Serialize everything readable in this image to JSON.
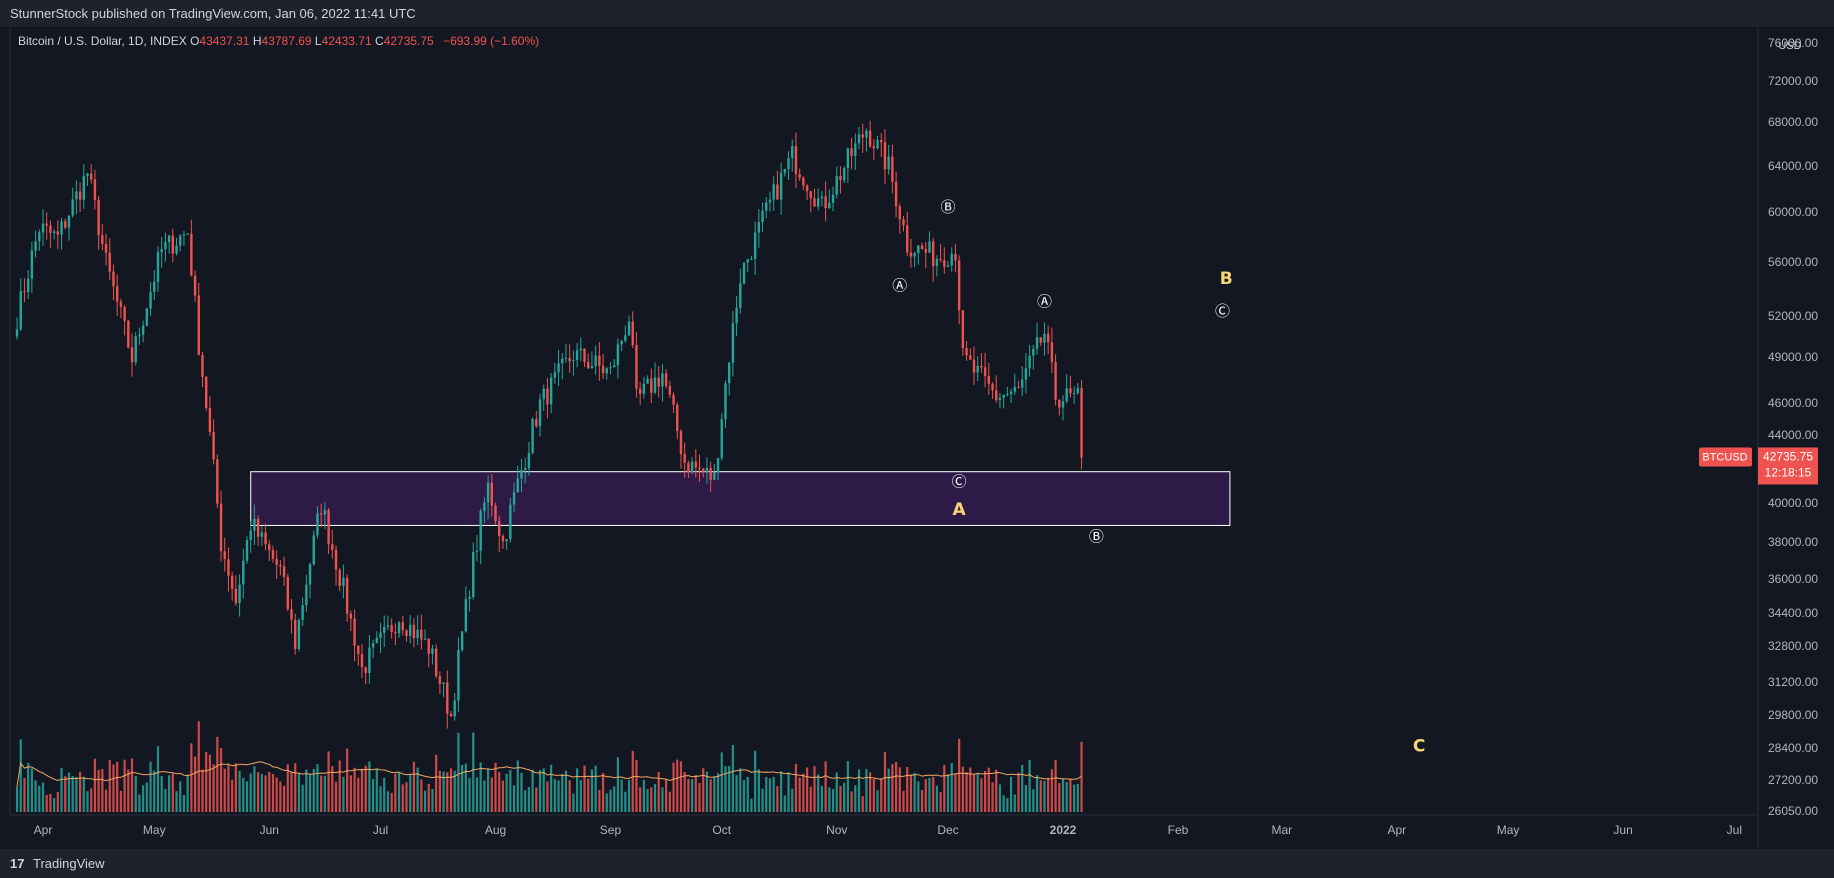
{
  "header": {
    "publish_text": "StunnerStock published on TradingView.com, Jan 06, 2022 11:41 UTC"
  },
  "footer": {
    "logo_glyph": "17",
    "brand": "TradingView"
  },
  "legend": {
    "symbol": "Bitcoin / U.S. Dollar, 1D, INDEX",
    "o_label": "O",
    "o_value": "43437.31",
    "h_label": "H",
    "h_value": "43787.69",
    "l_label": "L",
    "l_value": "42433.71",
    "c_label": "C",
    "c_value": "42735.75",
    "change": "−693.99 (−1.60%)"
  },
  "colors": {
    "up": "#26a69a",
    "down": "#ef5350",
    "zone_fill": "#2e1a47",
    "zone_border": "#ffffff",
    "ma": "#f0a861",
    "wave_label": "#f7d774",
    "price_tag": "#ef5350",
    "background": "#131722"
  },
  "chart_data": {
    "type": "candlestick",
    "symbol": "BTCUSD",
    "interval": "1D",
    "x_axis_ticks": [
      "Apr",
      "May",
      "Jun",
      "Jul",
      "Aug",
      "Sep",
      "Oct",
      "Nov",
      "Dec",
      "2022",
      "Feb",
      "Mar",
      "Apr",
      "May",
      "Jun",
      "Jul"
    ],
    "y_axis_ticks": [
      "76000.00",
      "72000.00",
      "68000.00",
      "64000.00",
      "60000.00",
      "56000.00",
      "52000.00",
      "49000.00",
      "46000.00",
      "44000.00",
      "40000.00",
      "38000.00",
      "36000.00",
      "34400.00",
      "32800.00",
      "31200.00",
      "29800.00",
      "28400.00",
      "27200.00",
      "26050.00"
    ],
    "y_axis_unit": "USD",
    "last_price": {
      "symbol": "BTCUSD",
      "price": "42735.75",
      "countdown": "12:18:15",
      "value": 42735.75
    },
    "zone": {
      "top": 41900,
      "bottom": 38900,
      "start": "2021-05-27",
      "end": "2022-02-15"
    },
    "wave_labels": [
      {
        "text": "Ⓐ",
        "date": "2021-11-18",
        "price": 54300
      },
      {
        "text": "Ⓑ",
        "date": "2021-12-01",
        "price": 60500
      },
      {
        "text": "Ⓒ",
        "date": "2021-12-04",
        "price": 41300
      },
      {
        "text": "A",
        "date": "2021-12-04",
        "price": 39700,
        "major": true
      },
      {
        "text": "Ⓐ",
        "date": "2021-12-27",
        "price": 53100
      },
      {
        "text": "Ⓑ",
        "date": "2022-01-10",
        "price": 38300
      },
      {
        "text": "B",
        "date": "2022-02-14",
        "price": 54800,
        "major": true
      },
      {
        "text": "Ⓒ",
        "date": "2022-02-13",
        "price": 52400
      },
      {
        "text": "C",
        "date": "2022-04-07",
        "price": 28500,
        "major": true
      }
    ],
    "price_keypoints": [
      [
        "2021-03-25",
        52000
      ],
      [
        "2021-03-31",
        58800
      ],
      [
        "2021-04-05",
        58000
      ],
      [
        "2021-04-13",
        63500
      ],
      [
        "2021-04-18",
        56000
      ],
      [
        "2021-04-25",
        49000
      ],
      [
        "2021-05-03",
        57000
      ],
      [
        "2021-05-10",
        58500
      ],
      [
        "2021-05-13",
        50000
      ],
      [
        "2021-05-19",
        38000
      ],
      [
        "2021-05-23",
        35000
      ],
      [
        "2021-05-27",
        39000
      ],
      [
        "2021-06-04",
        36500
      ],
      [
        "2021-06-08",
        33000
      ],
      [
        "2021-06-15",
        40000
      ],
      [
        "2021-06-21",
        35500
      ],
      [
        "2021-06-26",
        31800
      ],
      [
        "2021-07-06",
        34300
      ],
      [
        "2021-07-14",
        32800
      ],
      [
        "2021-07-20",
        29800
      ],
      [
        "2021-07-26",
        37000
      ],
      [
        "2021-07-30",
        41000
      ],
      [
        "2021-08-03",
        38000
      ],
      [
        "2021-08-13",
        46000
      ],
      [
        "2021-08-22",
        49300
      ],
      [
        "2021-09-01",
        48000
      ],
      [
        "2021-09-06",
        52000
      ],
      [
        "2021-09-08",
        46200
      ],
      [
        "2021-09-15",
        48000
      ],
      [
        "2021-09-21",
        42500
      ],
      [
        "2021-09-29",
        41500
      ],
      [
        "2021-10-06",
        55000
      ],
      [
        "2021-10-15",
        61500
      ],
      [
        "2021-10-20",
        65000
      ],
      [
        "2021-10-28",
        60500
      ],
      [
        "2021-11-09",
        67500
      ],
      [
        "2021-11-15",
        64000
      ],
      [
        "2021-11-20",
        57500
      ],
      [
        "2021-11-28",
        56500
      ],
      [
        "2021-12-03",
        57000
      ],
      [
        "2021-12-05",
        49000
      ],
      [
        "2021-12-14",
        46500
      ],
      [
        "2021-12-20",
        46800
      ],
      [
        "2021-12-27",
        50800
      ],
      [
        "2021-12-30",
        46500
      ],
      [
        "2022-01-05",
        46300
      ],
      [
        "2022-01-06",
        42735
      ]
    ]
  }
}
